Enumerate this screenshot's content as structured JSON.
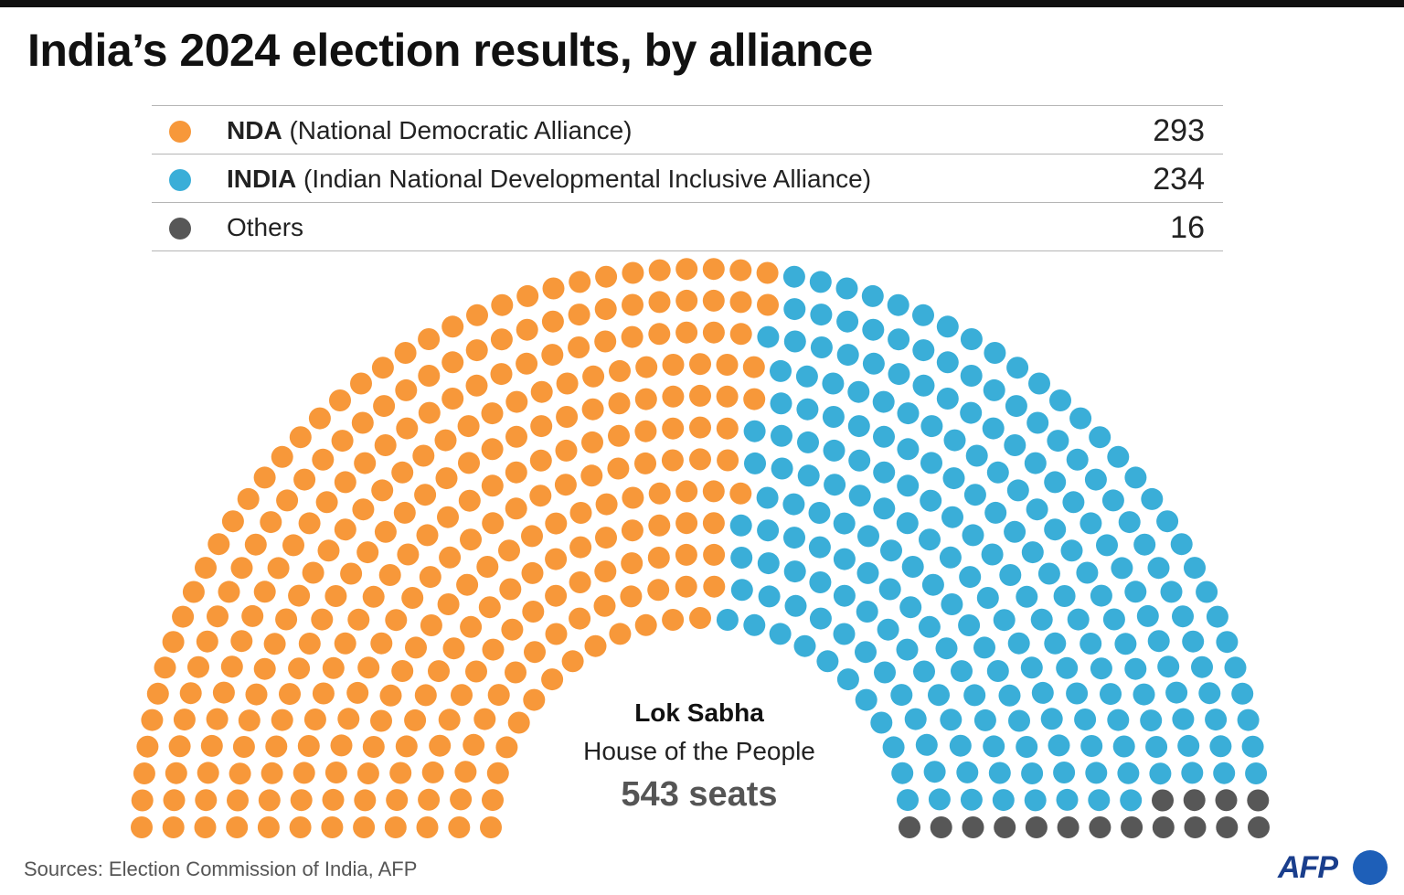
{
  "title": "India’s 2024 election results, by alliance",
  "legend": [
    {
      "abbr": "NDA",
      "full": " (National Democratic Alliance)",
      "seats": "293",
      "color": "#f7983a"
    },
    {
      "abbr": "INDIA",
      "full": " (Indian National Developmental Inclusive Alliance)",
      "seats": "234",
      "color": "#3aaed8"
    },
    {
      "abbr": "",
      "full": "Others",
      "seats": "16",
      "color": "#575757"
    }
  ],
  "center": {
    "title": "Lok Sabha",
    "subtitle": "House of the People",
    "seats": "543 seats"
  },
  "source": "Sources: Election Commission of India, AFP",
  "logo": "AFP",
  "chart_data": {
    "type": "parliament",
    "total_seats": 543,
    "rows": 12,
    "series": [
      {
        "name": "NDA",
        "value": 293,
        "color": "#f7983a"
      },
      {
        "name": "INDIA",
        "value": 234,
        "color": "#3aaed8"
      },
      {
        "name": "Others",
        "value": 16,
        "color": "#575757"
      }
    ]
  }
}
